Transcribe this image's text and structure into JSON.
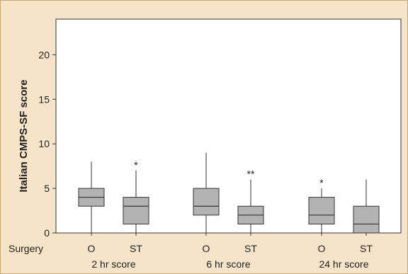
{
  "chart_data": {
    "type": "box",
    "ylabel": "Italian CMPS-SF score",
    "ylim": [
      0,
      24
    ],
    "yticks": [
      0,
      5,
      10,
      15,
      20
    ],
    "row_label": "Surgery",
    "groups": [
      {
        "label": "2 hr score",
        "boxes": [
          {
            "category": "O",
            "min": 0,
            "q1": 3,
            "median": 4,
            "q3": 5,
            "max": 8,
            "annotation": ""
          },
          {
            "category": "ST",
            "min": 0,
            "q1": 1,
            "median": 3,
            "q3": 4,
            "max": 7,
            "annotation": "*"
          }
        ]
      },
      {
        "label": "6 hr score",
        "boxes": [
          {
            "category": "O",
            "min": 0,
            "q1": 2,
            "median": 3,
            "q3": 5,
            "max": 9,
            "annotation": ""
          },
          {
            "category": "ST",
            "min": 0,
            "q1": 1,
            "median": 2,
            "q3": 3,
            "max": 6,
            "annotation": "**"
          }
        ]
      },
      {
        "label": "24 hr score",
        "boxes": [
          {
            "category": "O",
            "min": 0,
            "q1": 1,
            "median": 2,
            "q3": 4,
            "max": 5,
            "annotation": "*"
          },
          {
            "category": "ST",
            "min": 0,
            "q1": 0,
            "median": 1,
            "q3": 3,
            "max": 6,
            "annotation": ""
          }
        ]
      }
    ],
    "colors": {
      "background": "#f6e4c8",
      "plot_area": "#ffffff",
      "box_fill": "#b3b3b3",
      "line": "#333333"
    }
  }
}
